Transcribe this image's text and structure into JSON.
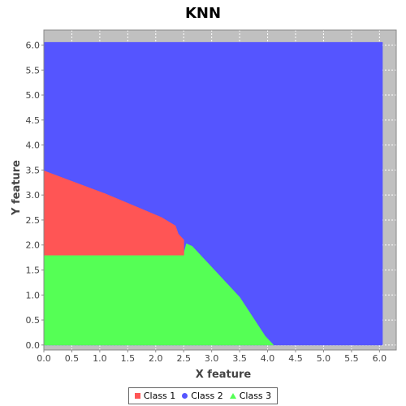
{
  "chart_data": {
    "type": "area",
    "title": "KNN",
    "xlabel": "X feature",
    "ylabel": "Y feature",
    "xlim": [
      0.0,
      6.3
    ],
    "ylim": [
      -0.1,
      6.3
    ],
    "grid": true,
    "x_ticks": [
      "0.0",
      "0.5",
      "1.0",
      "1.5",
      "2.0",
      "2.5",
      "3.0",
      "3.5",
      "4.0",
      "4.5",
      "5.0",
      "5.5",
      "6.0"
    ],
    "y_ticks": [
      "0.0",
      "0.5",
      "1.0",
      "1.5",
      "2.0",
      "2.5",
      "3.0",
      "3.5",
      "4.0",
      "4.5",
      "5.0",
      "5.5",
      "6.0"
    ],
    "plot_background": "#c0c0c0",
    "regions": [
      {
        "name": "Class 2",
        "color": "#5555ff",
        "polygon": [
          [
            0.0,
            0.0
          ],
          [
            6.05,
            0.0
          ],
          [
            6.05,
            6.05
          ],
          [
            0.0,
            6.05
          ]
        ]
      },
      {
        "name": "Class 3",
        "color": "#55ff55",
        "polygon": [
          [
            0.0,
            0.0
          ],
          [
            4.1,
            0.0
          ],
          [
            3.95,
            0.18
          ],
          [
            3.5,
            0.95
          ],
          [
            2.65,
            1.97
          ],
          [
            2.55,
            2.02
          ],
          [
            2.5,
            1.8
          ],
          [
            0.0,
            1.8
          ]
        ]
      },
      {
        "name": "Class 1",
        "color": "#ff5555",
        "polygon": [
          [
            0.0,
            1.8
          ],
          [
            2.5,
            1.8
          ],
          [
            2.5,
            2.1
          ],
          [
            2.4,
            2.22
          ],
          [
            2.35,
            2.38
          ],
          [
            2.1,
            2.55
          ],
          [
            1.1,
            3.02
          ],
          [
            0.0,
            3.48
          ]
        ]
      }
    ],
    "legend": [
      {
        "label": "Class 1",
        "color": "#ff5555",
        "marker": "square"
      },
      {
        "label": "Class 2",
        "color": "#5555ff",
        "marker": "circle"
      },
      {
        "label": "Class 3",
        "color": "#55ff55",
        "marker": "triangle"
      }
    ],
    "legend_position": "bottom-center"
  }
}
